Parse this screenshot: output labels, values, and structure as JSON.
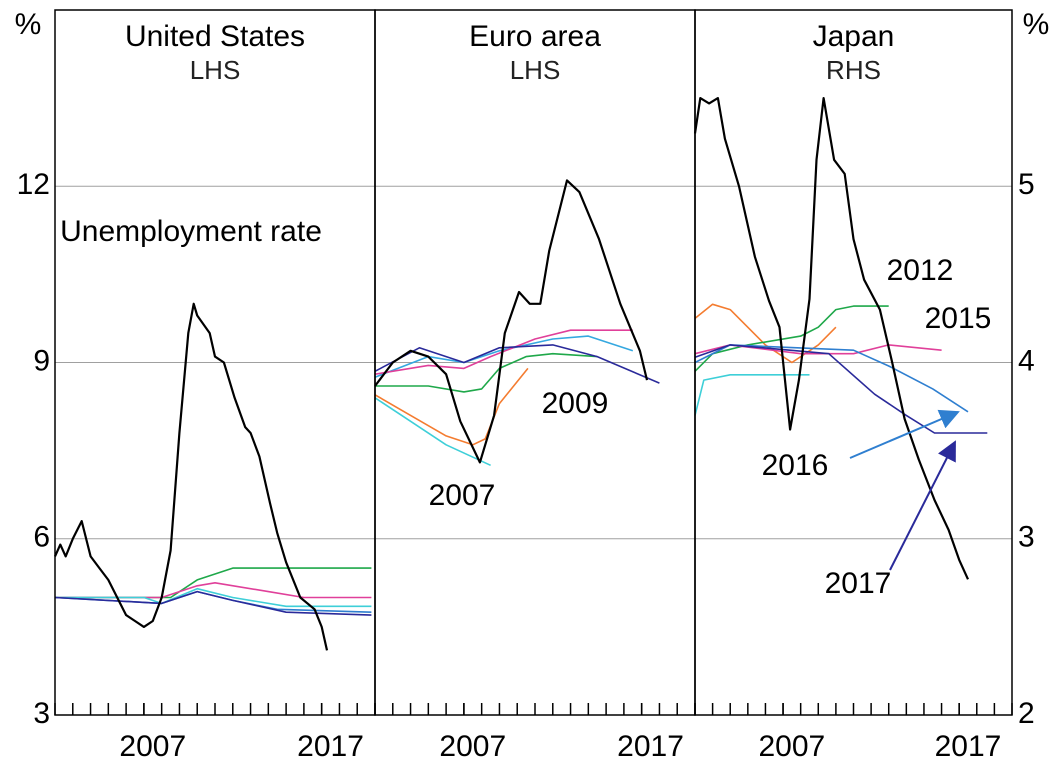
{
  "chart_data": [
    {
      "type": "line",
      "title": "United States",
      "subtitle": "LHS",
      "ylabel": "%",
      "yaxis_side": "left",
      "xlim": [
        2002,
        2020
      ],
      "xticks": [
        2007,
        2017
      ],
      "ylim": [
        3,
        15
      ],
      "yticks": [
        3,
        6,
        9,
        12
      ],
      "grid": true,
      "series": [
        {
          "color": "#1fa84a",
          "x": [
            2002,
            2008.5,
            2010,
            2012,
            2019.8
          ],
          "values": [
            5.0,
            5.0,
            5.3,
            5.5,
            5.5
          ]
        },
        {
          "color": "#e0409a",
          "x": [
            2002,
            2008,
            2010,
            2011,
            2014,
            2016,
            2019.8
          ],
          "values": [
            5.0,
            5.0,
            5.2,
            5.25,
            5.1,
            5.0,
            5.0
          ]
        },
        {
          "color": "#3ecfd8",
          "x": [
            2002,
            2007,
            2008,
            2010,
            2012,
            2015,
            2019.8
          ],
          "values": [
            5.0,
            5.0,
            4.9,
            5.15,
            5.0,
            4.85,
            4.85
          ]
        },
        {
          "color": "#2f7fd0",
          "x": [
            2002,
            2008,
            2010,
            2012,
            2014.5,
            2019.8
          ],
          "values": [
            5.0,
            4.9,
            5.1,
            4.95,
            4.8,
            4.75
          ]
        },
        {
          "color": "#2a2a9a",
          "x": [
            2002,
            2008,
            2010,
            2012,
            2015,
            2019.8
          ],
          "values": [
            5.0,
            4.9,
            5.1,
            4.95,
            4.75,
            4.7
          ]
        },
        {
          "name": "Unemployment rate",
          "color": "#000000",
          "x": [
            2002.0,
            2002.3,
            2002.6,
            2003.0,
            2003.5,
            2004.0,
            2004.5,
            2005.0,
            2005.5,
            2006.0,
            2006.5,
            2007.0,
            2007.5,
            2008.0,
            2008.5,
            2009.0,
            2009.5,
            2009.8,
            2010.0,
            2010.7,
            2011.0,
            2011.5,
            2012.1,
            2012.7,
            2013.0,
            2013.5,
            2014.1,
            2014.5,
            2015.0,
            2015.8,
            2016.6,
            2017.0,
            2017.3
          ],
          "values": [
            5.7,
            5.9,
            5.7,
            6.0,
            6.3,
            5.7,
            5.5,
            5.3,
            5.0,
            4.7,
            4.6,
            4.5,
            4.6,
            5.0,
            5.8,
            7.8,
            9.5,
            10.0,
            9.8,
            9.5,
            9.1,
            9.0,
            8.4,
            7.9,
            7.8,
            7.4,
            6.6,
            6.1,
            5.6,
            5.0,
            4.8,
            4.5,
            4.1
          ]
        }
      ]
    },
    {
      "type": "line",
      "title": "Euro area",
      "subtitle": "LHS",
      "xlim": [
        2002,
        2020
      ],
      "xticks": [
        2007,
        2017
      ],
      "ylim": [
        3,
        15
      ],
      "yticks": [
        3,
        6,
        9,
        12
      ],
      "grid": true,
      "series": [
        {
          "name": "2007",
          "color": "#3ecfd8",
          "x": [
            2002,
            2004,
            2006,
            2008.5
          ],
          "values": [
            8.4,
            8.0,
            7.6,
            7.25
          ]
        },
        {
          "name": "2009",
          "color": "#f47c30",
          "x": [
            2002,
            2004,
            2006,
            2007.5,
            2008.2,
            2009,
            2010.6
          ],
          "values": [
            8.45,
            8.1,
            7.75,
            7.6,
            7.7,
            8.3,
            8.9
          ]
        },
        {
          "color": "#1fa84a",
          "x": [
            2002,
            2005,
            2007,
            2008,
            2009,
            2010.5,
            2012,
            2014.5
          ],
          "values": [
            8.6,
            8.6,
            8.5,
            8.55,
            8.9,
            9.1,
            9.15,
            9.1
          ]
        },
        {
          "color": "#35a8e0",
          "x": [
            2002,
            2005,
            2007,
            2009,
            2012,
            2014,
            2016.5
          ],
          "values": [
            8.75,
            9.1,
            9.0,
            9.2,
            9.4,
            9.45,
            9.2
          ]
        },
        {
          "color": "#e0409a",
          "x": [
            2002,
            2005,
            2007,
            2008.5,
            2011,
            2013,
            2016.5
          ],
          "values": [
            8.8,
            8.95,
            8.9,
            9.1,
            9.4,
            9.55,
            9.55
          ]
        },
        {
          "color": "#2a2a9a",
          "x": [
            2002,
            2004.5,
            2007,
            2009,
            2012,
            2014.5,
            2018
          ],
          "values": [
            8.85,
            9.25,
            9.0,
            9.25,
            9.3,
            9.1,
            8.65
          ]
        },
        {
          "color": "#000000",
          "x": [
            2002.0,
            2003.0,
            2004.0,
            2005.0,
            2006.0,
            2006.8,
            2007.9,
            2008.7,
            2009.3,
            2010.1,
            2010.7,
            2011.3,
            2011.8,
            2012.8,
            2013.5,
            2014.6,
            2015.8,
            2016.9,
            2017.3
          ],
          "values": [
            8.6,
            9.0,
            9.2,
            9.1,
            8.8,
            8.0,
            7.3,
            8.1,
            9.5,
            10.2,
            10.0,
            10.0,
            10.9,
            12.1,
            11.9,
            11.1,
            10.0,
            9.2,
            8.7
          ]
        }
      ]
    },
    {
      "type": "line",
      "title": "Japan",
      "subtitle": "RHS",
      "ylabel": "%",
      "yaxis_side": "right",
      "xlim": [
        2002,
        2020
      ],
      "xticks": [
        2007,
        2017
      ],
      "ylim": [
        2,
        6
      ],
      "yticks": [
        2,
        3,
        4,
        5
      ],
      "grid": true,
      "series": [
        {
          "color": "#3ecfd8",
          "x": [
            2002,
            2002.5,
            2004,
            2008.5
          ],
          "values": [
            3.7,
            3.9,
            3.93,
            3.93
          ]
        },
        {
          "color": "#f47c30",
          "x": [
            2002,
            2003,
            2004,
            2006,
            2007.5,
            2009,
            2010
          ],
          "values": [
            4.25,
            4.33,
            4.3,
            4.1,
            4.0,
            4.1,
            4.2
          ]
        },
        {
          "name": "2012",
          "color": "#1fa84a",
          "x": [
            2002,
            2003,
            2005,
            2008,
            2009,
            2010,
            2011,
            2013
          ],
          "values": [
            3.95,
            4.05,
            4.1,
            4.15,
            4.2,
            4.3,
            4.32,
            4.32
          ]
        },
        {
          "name": "2015",
          "color": "#e0409a",
          "x": [
            2002,
            2004,
            2008,
            2011,
            2013,
            2016
          ],
          "values": [
            4.05,
            4.1,
            4.05,
            4.05,
            4.1,
            4.07
          ]
        },
        {
          "name": "2016",
          "color": "#2f7fd0",
          "x": [
            2002,
            2004,
            2011,
            2013,
            2015.5,
            2017.5
          ],
          "values": [
            4.0,
            4.1,
            4.07,
            3.98,
            3.85,
            3.72
          ]
        },
        {
          "name": "2017",
          "color": "#2a2a9a",
          "x": [
            2002,
            2004,
            2009.6,
            2012.2,
            2014,
            2015.6,
            2018.6
          ],
          "values": [
            4.03,
            4.1,
            4.05,
            3.82,
            3.7,
            3.6,
            3.6
          ]
        },
        {
          "color": "#000000",
          "x": [
            2002.0,
            2002.3,
            2002.8,
            2003.3,
            2003.7,
            2004.5,
            2005.4,
            2006.2,
            2006.8,
            2007.4,
            2007.9,
            2008.5,
            2008.9,
            2009.3,
            2009.9,
            2010.5,
            2011.0,
            2011.6,
            2012.5,
            2013.2,
            2013.9,
            2014.7,
            2015.6,
            2016.4,
            2017.0,
            2017.5
          ],
          "values": [
            5.3,
            5.5,
            5.47,
            5.5,
            5.27,
            5.0,
            4.6,
            4.35,
            4.2,
            3.62,
            3.9,
            4.36,
            5.15,
            5.5,
            5.15,
            5.07,
            4.7,
            4.47,
            4.3,
            4.0,
            3.68,
            3.45,
            3.22,
            3.05,
            2.88,
            2.77
          ]
        }
      ]
    }
  ]
}
